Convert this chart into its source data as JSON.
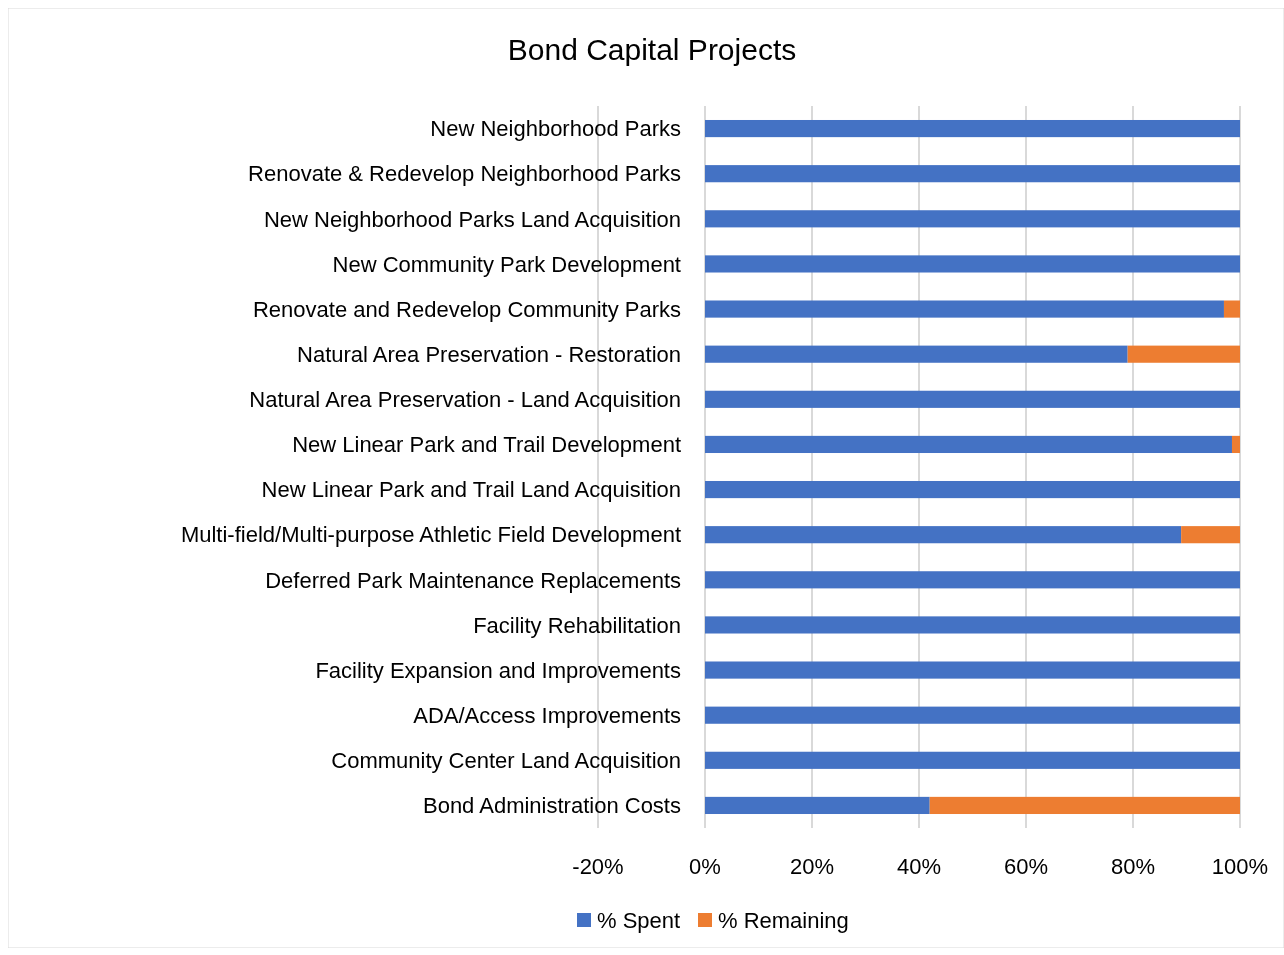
{
  "chart_data": {
    "type": "bar",
    "orientation": "horizontal",
    "stacked": true,
    "title": "Bond Capital Projects",
    "categories": [
      "New Neighborhood Parks",
      "Renovate & Redevelop Neighborhood Parks",
      "New Neighborhood Parks Land Acquisition",
      "New Community Park Development",
      "Renovate and Redevelop Community Parks",
      "Natural Area Preservation - Restoration",
      "Natural Area Preservation - Land Acquisition",
      "New Linear Park and Trail Development",
      "New Linear Park and Trail Land Acquisition",
      "Multi-field/Multi-purpose Athletic Field Development",
      "Deferred Park Maintenance Replacements",
      "Facility Rehabilitation",
      "Facility Expansion and Improvements",
      "ADA/Access Improvements",
      "Community Center Land Acquisition",
      "Bond Administration Costs"
    ],
    "series": [
      {
        "name": "% Spent",
        "color": "#4472c4",
        "values": [
          100,
          100,
          100,
          100,
          97,
          79,
          100,
          98.5,
          100,
          89,
          100,
          100,
          100,
          100,
          100,
          42
        ]
      },
      {
        "name": "% Remaining",
        "color": "#ed7d31",
        "values": [
          0,
          0,
          0,
          0,
          3,
          21,
          0,
          1.5,
          0,
          11,
          0,
          0,
          0,
          0,
          0,
          58
        ]
      }
    ],
    "xlim": [
      -20,
      100
    ],
    "xticks": [
      {
        "value": -20,
        "label": "-20%"
      },
      {
        "value": 0,
        "label": "0%"
      },
      {
        "value": 20,
        "label": "20%"
      },
      {
        "value": 40,
        "label": "40%"
      },
      {
        "value": 60,
        "label": "60%"
      },
      {
        "value": 80,
        "label": "80%"
      },
      {
        "value": 100,
        "label": "100%"
      }
    ],
    "grid": "x",
    "legend": "bottom"
  }
}
